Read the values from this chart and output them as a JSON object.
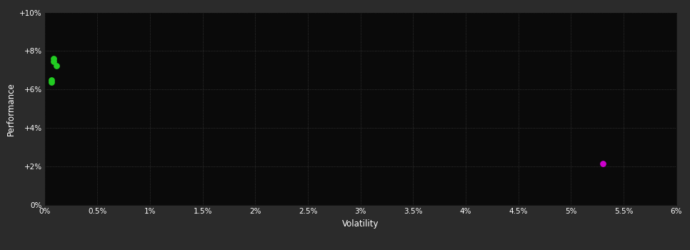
{
  "background_color": "#2b2b2b",
  "plot_bg_color": "#0a0a0a",
  "grid_color": "#4a4a4a",
  "text_color": "#ffffff",
  "xlabel": "Volatility",
  "ylabel": "Performance",
  "xlim": [
    0,
    0.06
  ],
  "ylim": [
    0,
    0.1
  ],
  "xticks": [
    0,
    0.005,
    0.01,
    0.015,
    0.02,
    0.025,
    0.03,
    0.035,
    0.04,
    0.045,
    0.05,
    0.055,
    0.06
  ],
  "yticks": [
    0,
    0.02,
    0.04,
    0.06,
    0.08,
    0.1
  ],
  "xtick_labels": [
    "0%",
    "0.5%",
    "1%",
    "1.5%",
    "2%",
    "2.5%",
    "3%",
    "3.5%",
    "4%",
    "4.5%",
    "5%",
    "5.5%",
    "6%"
  ],
  "ytick_labels": [
    "0%",
    "+2%",
    "+4%",
    "+6%",
    "+8%",
    "+10%"
  ],
  "green_points": [
    [
      0.00085,
      0.076
    ],
    [
      0.00085,
      0.0745
    ],
    [
      0.0011,
      0.0725
    ],
    [
      0.0006,
      0.065
    ],
    [
      0.00065,
      0.0638
    ]
  ],
  "magenta_points": [
    [
      0.053,
      0.0215
    ]
  ],
  "green_color": "#22cc22",
  "magenta_color": "#cc00cc",
  "point_size": 28,
  "figsize": [
    9.66,
    3.5
  ],
  "dpi": 100
}
